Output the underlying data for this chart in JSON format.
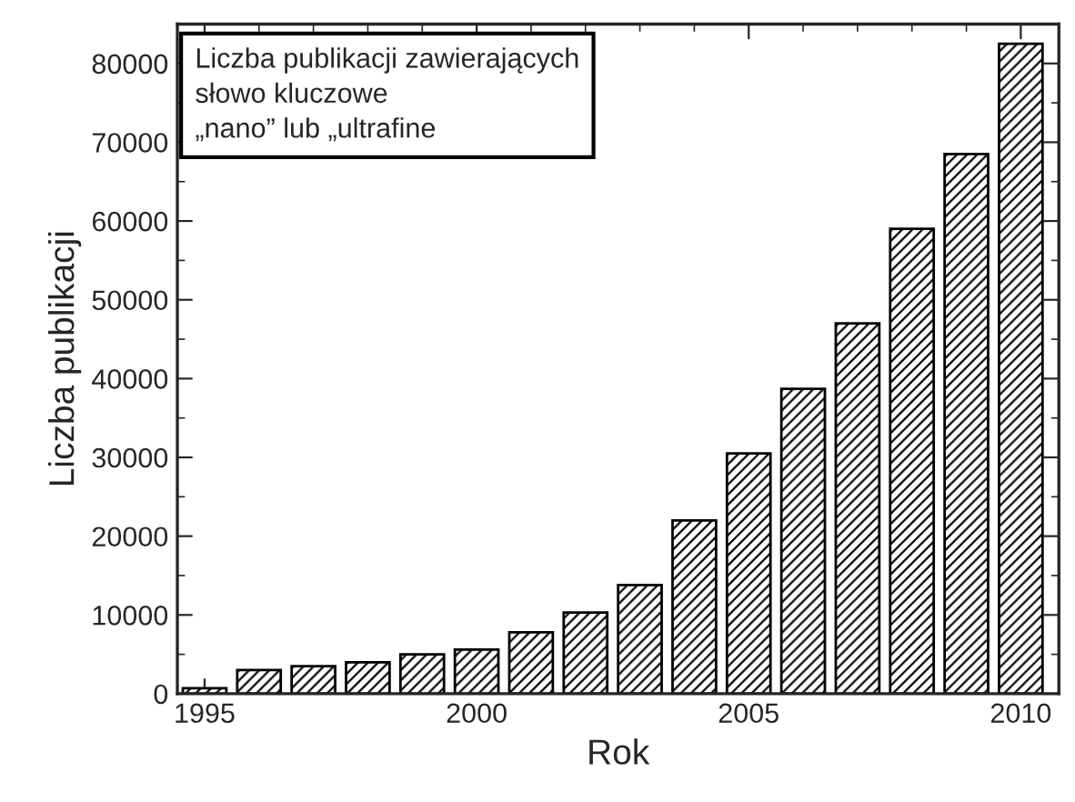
{
  "chart_data": {
    "type": "bar",
    "xlabel": "Rok",
    "ylabel": "Liczba publikacji",
    "annotations": [
      "Liczba publikacji zawierających\nsłowo kluczowe\n„nano” lub „ultrafine"
    ],
    "x": [
      1995,
      1996,
      1997,
      1998,
      1999,
      2000,
      2001,
      2002,
      2003,
      2004,
      2005,
      2006,
      2007,
      2008,
      2009,
      2010
    ],
    "series": [
      {
        "color": "#000000",
        "values": [
          700,
          3000,
          3500,
          4000,
          5000,
          5600,
          7800,
          10300,
          13800,
          22000,
          30500,
          38700,
          47000,
          59000,
          68500,
          82500
        ]
      }
    ],
    "xlim": [
      1994.5,
      2010.7
    ],
    "xticks": [
      1995,
      2000,
      2005,
      2010
    ],
    "ylim": [
      0,
      85000
    ],
    "yticks": [
      0,
      10000,
      20000,
      30000,
      40000,
      50000,
      60000,
      70000,
      80000
    ],
    "grid": false,
    "legend": false
  }
}
